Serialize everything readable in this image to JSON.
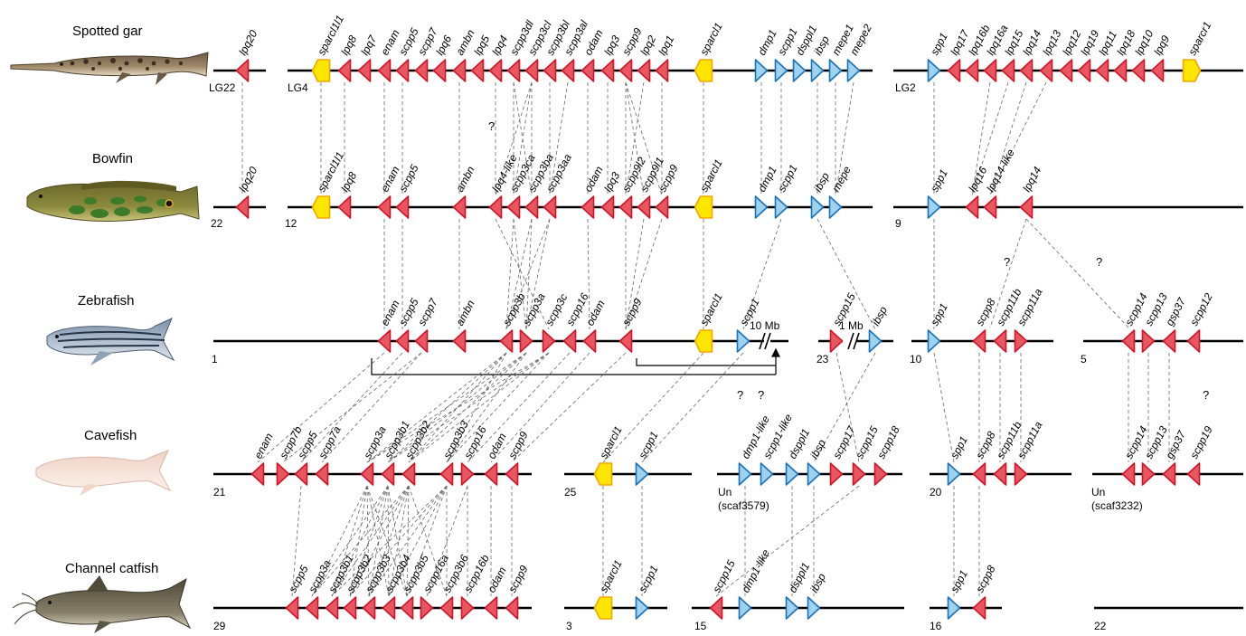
{
  "colors": {
    "scpp_gene": "#e8575f",
    "scpp_edge": "#d0142a",
    "sparc_gene": "#ffe600",
    "sparc_edge": "#f0a500",
    "blue_gene": "#9ed2ef",
    "blue_edge": "#1a72b8"
  },
  "species": [
    {
      "name": "Spotted gar",
      "fish_icon": "spotted-gar-fish-icon"
    },
    {
      "name": "Bowfin",
      "fish_icon": "bowfin-fish-icon"
    },
    {
      "name": "Zebrafish",
      "fish_icon": "zebrafish-fish-icon"
    },
    {
      "name": "Cavefish",
      "fish_icon": "cavefish-fish-icon"
    },
    {
      "name": "Channel catfish",
      "fish_icon": "channel-catfish-fish-icon"
    }
  ],
  "chromosome_labels": {
    "gar": [
      "LG22",
      "LG4",
      "LG2"
    ],
    "bowfin": [
      "22",
      "12",
      "9"
    ],
    "zebrafish": [
      "1",
      "23",
      "10",
      "5"
    ],
    "cavefish": [
      "21",
      "25",
      "Un\n(scaf3579)",
      "20",
      "Un\n(scaf3232)"
    ],
    "catfish": [
      "29",
      "3",
      "15",
      "16",
      "22"
    ]
  },
  "annotations": {
    "ten_mb": "10 Mb",
    "one_mb": "1 Mb",
    "question": "?"
  },
  "genes": {
    "gar": [
      "lpq20",
      "sparcl1l1",
      "lpq8",
      "lpq7",
      "enam",
      "scpp5",
      "scpp7",
      "lpq6",
      "ambn",
      "lpq5",
      "lpq4",
      "scpp3dl",
      "scpp3cl",
      "scpp3bl",
      "scpp3al",
      "odam",
      "lpq3",
      "scpp9",
      "lpq2",
      "lpq1",
      "sparcl1",
      "dmp1",
      "scpp1",
      "dsppl1",
      "ibsp",
      "mepe1",
      "mepe2",
      "spp1",
      "lpq17",
      "lpq16b",
      "lpq16a",
      "lpq15",
      "lpq14",
      "lpq13",
      "lpq12",
      "lpq19",
      "lpq11",
      "lpq18",
      "lpq10",
      "lpq9",
      "sparcr1"
    ],
    "bowfin": [
      "lpq20",
      "sparcl1l1",
      "lpq8",
      "enam",
      "scpp5",
      "ambn",
      "lpq4-like",
      "scpp3ca",
      "scpp3ba",
      "scpp3aa",
      "odam",
      "lpq3",
      "scpp9l2",
      "scpp9l1",
      "scpp9",
      "sparcl1",
      "dmp1",
      "scpp1",
      "ibsp",
      "mepe",
      "spp1",
      "lpq16",
      "lpq14-like",
      "lpq14"
    ],
    "zebrafish": [
      "enam",
      "scpp5",
      "scpp7",
      "ambn",
      "scpp3b",
      "scpp3a",
      "scpp3c",
      "scpp16",
      "odam",
      "scpp9",
      "sparcl1",
      "scpp1",
      "scpp15",
      "ibsp",
      "spp1",
      "scpp8",
      "scpp11b",
      "scpp11a",
      "scpp14",
      "scpp13",
      "gsp37",
      "scpp12"
    ],
    "cavefish": [
      "enam",
      "scpp7b",
      "scpp5",
      "scpp7a",
      "scpp3a",
      "scpp3b1",
      "scpp3b2",
      "scpp3b3",
      "scpp16",
      "odam",
      "scpp9",
      "sparcl1",
      "scpp1",
      "dmp1-like",
      "scpp1-like",
      "dsppl1",
      "ibsp",
      "scpp17",
      "scpp15",
      "scpp18",
      "spp1",
      "scpp8",
      "scpp11b",
      "scpp11a",
      "scpp14",
      "scpp13",
      "gsp37",
      "scpp19"
    ],
    "catfish": [
      "scpp5",
      "scpp3a",
      "scpp3b1",
      "scpp3b2",
      "scpp3b3",
      "scpp3b4",
      "scpp3b5",
      "scpp16a",
      "scpp3b6",
      "scpp16b",
      "odam",
      "scpp9",
      "sparcl1",
      "scpp1",
      "scpp15",
      "dmp1-like",
      "dsppl1",
      "ibsp",
      "spp1",
      "scpp8"
    ]
  }
}
